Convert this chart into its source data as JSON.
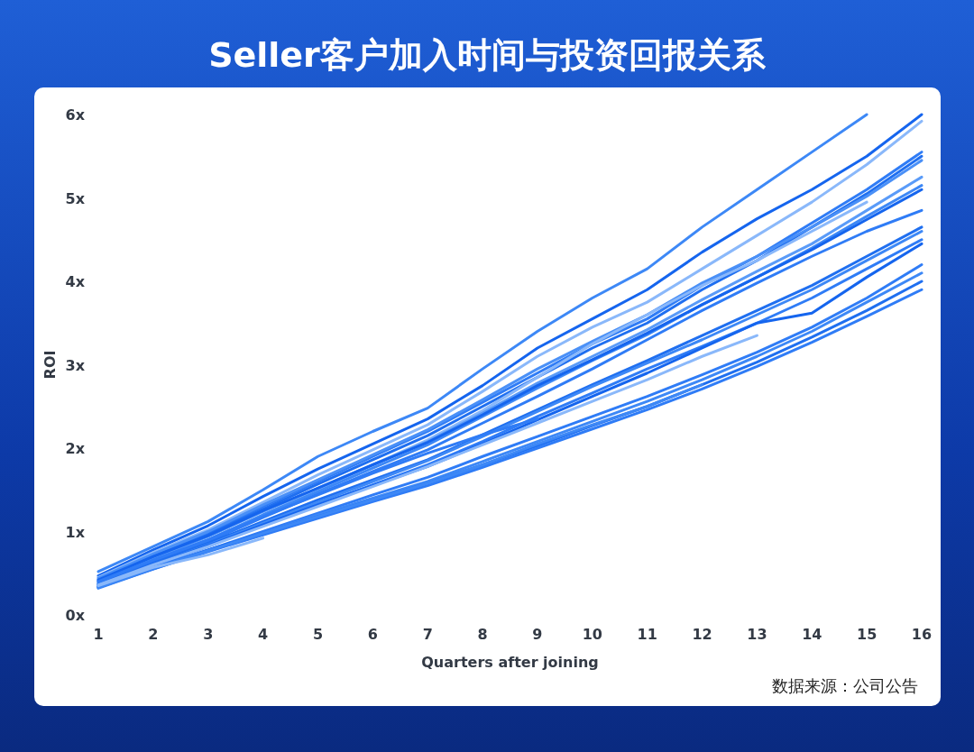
{
  "chart_data": {
    "type": "line",
    "title": "Seller客户加入时间与投资回报关系",
    "xlabel": "Quarters after joining",
    "ylabel": "ROI",
    "x": [
      1,
      2,
      3,
      4,
      5,
      6,
      7,
      8,
      9,
      10,
      11,
      12,
      13,
      14,
      15,
      16
    ],
    "xlim": [
      1,
      16
    ],
    "xticks": [
      1,
      2,
      3,
      4,
      5,
      6,
      7,
      8,
      9,
      10,
      11,
      12,
      13,
      14,
      15,
      16
    ],
    "ylim": [
      0,
      6
    ],
    "yticks": [
      {
        "value": 0,
        "label": "0x"
      },
      {
        "value": 1,
        "label": "1x"
      },
      {
        "value": 2,
        "label": "2x"
      },
      {
        "value": 3,
        "label": "3x"
      },
      {
        "value": 4,
        "label": "4x"
      },
      {
        "value": 5,
        "label": "5x"
      },
      {
        "value": 6,
        "label": "6x"
      }
    ],
    "grid": false,
    "series": [
      {
        "color": "#3d88f6",
        "values": [
          0.52,
          0.82,
          1.12,
          1.5,
          1.9,
          2.2,
          2.48,
          2.95,
          3.4,
          3.8,
          4.15,
          4.65,
          5.1,
          5.55,
          6.0,
          null
        ]
      },
      {
        "color": "#1565ee",
        "values": [
          0.47,
          0.78,
          1.07,
          1.42,
          1.75,
          2.05,
          2.35,
          2.75,
          3.2,
          3.55,
          3.9,
          4.35,
          4.75,
          5.1,
          5.5,
          6.0
        ]
      },
      {
        "color": "#8ab8fa",
        "values": [
          0.45,
          0.75,
          1.02,
          1.35,
          1.68,
          1.98,
          2.28,
          2.68,
          3.1,
          3.45,
          3.75,
          4.15,
          4.55,
          4.95,
          5.4,
          5.92
        ]
      },
      {
        "color": "#2f7cf6",
        "values": [
          0.42,
          0.72,
          0.98,
          1.3,
          1.6,
          1.9,
          2.2,
          2.55,
          2.9,
          3.25,
          3.55,
          3.95,
          4.3,
          4.7,
          5.1,
          5.55
        ]
      },
      {
        "color": "#1f6ff0",
        "values": [
          0.4,
          0.7,
          0.96,
          1.27,
          1.57,
          1.86,
          2.15,
          2.5,
          2.85,
          3.2,
          3.5,
          3.9,
          4.25,
          4.65,
          5.05,
          5.5
        ]
      },
      {
        "color": "#4a90f7",
        "values": [
          0.44,
          0.73,
          1.0,
          1.32,
          1.62,
          1.92,
          2.22,
          2.58,
          2.95,
          3.28,
          3.6,
          3.98,
          4.3,
          4.65,
          5.02,
          5.45
        ]
      },
      {
        "color": "#8ab8fa",
        "values": [
          0.38,
          0.66,
          0.9,
          1.2,
          1.5,
          1.8,
          2.1,
          2.45,
          2.85,
          3.25,
          3.6,
          3.95,
          4.25,
          4.6,
          4.95,
          null
        ]
      },
      {
        "color": "#5a9bf8",
        "values": [
          0.4,
          0.68,
          0.94,
          1.24,
          1.52,
          1.8,
          2.08,
          2.42,
          2.78,
          3.1,
          3.42,
          3.78,
          4.12,
          4.45,
          4.85,
          5.25
        ]
      },
      {
        "color": "#3d88f6",
        "values": [
          0.38,
          0.65,
          0.9,
          1.2,
          1.48,
          1.76,
          2.04,
          2.38,
          2.72,
          3.05,
          3.36,
          3.72,
          4.05,
          4.4,
          4.78,
          5.15
        ]
      },
      {
        "color": "#1565ee",
        "values": [
          0.42,
          0.7,
          0.95,
          1.25,
          1.52,
          1.8,
          2.07,
          2.4,
          2.75,
          3.06,
          3.38,
          3.72,
          4.05,
          4.38,
          4.74,
          5.1
        ]
      },
      {
        "color": "#2f7cf6",
        "values": [
          0.37,
          0.64,
          0.88,
          1.17,
          1.45,
          1.72,
          1.98,
          2.3,
          2.62,
          2.95,
          3.3,
          3.65,
          3.98,
          4.3,
          4.6,
          4.85
        ]
      },
      {
        "color": "#1f6ff0",
        "values": [
          0.36,
          0.62,
          0.86,
          1.12,
          1.38,
          1.62,
          1.86,
          2.16,
          2.46,
          2.76,
          3.05,
          3.35,
          3.65,
          3.95,
          4.3,
          4.65
        ]
      },
      {
        "color": "#3d88f6",
        "values": [
          0.35,
          0.6,
          0.84,
          1.1,
          1.35,
          1.6,
          1.85,
          2.14,
          2.44,
          2.74,
          3.02,
          3.3,
          3.6,
          3.9,
          4.25,
          4.6
        ]
      },
      {
        "color": "#2f7cf6",
        "values": [
          0.34,
          0.58,
          0.82,
          1.08,
          1.32,
          1.56,
          1.8,
          2.08,
          2.38,
          2.66,
          2.95,
          3.22,
          3.5,
          3.8,
          4.15,
          4.5
        ]
      },
      {
        "color": "#1565ee",
        "values": [
          0.36,
          0.6,
          0.83,
          1.08,
          1.32,
          1.55,
          1.78,
          2.05,
          2.34,
          2.62,
          2.9,
          3.2,
          3.5,
          3.62,
          4.05,
          4.45
        ]
      },
      {
        "color": "#2f7cf6",
        "values": [
          0.33,
          0.56,
          0.78,
          1.0,
          1.22,
          1.44,
          1.65,
          1.9,
          2.14,
          2.38,
          2.62,
          2.88,
          3.15,
          3.45,
          3.8,
          4.2
        ]
      },
      {
        "color": "#3d88f6",
        "values": [
          0.32,
          0.55,
          0.77,
          0.98,
          1.2,
          1.4,
          1.6,
          1.84,
          2.08,
          2.32,
          2.56,
          2.82,
          3.1,
          3.4,
          3.75,
          4.1
        ]
      },
      {
        "color": "#1f6ff0",
        "values": [
          0.34,
          0.56,
          0.78,
          0.98,
          1.18,
          1.38,
          1.58,
          1.8,
          2.03,
          2.27,
          2.5,
          2.76,
          3.03,
          3.33,
          3.65,
          4.0
        ]
      },
      {
        "color": "#2f7cf6",
        "values": [
          0.33,
          0.55,
          0.76,
          0.96,
          1.16,
          1.36,
          1.55,
          1.77,
          2.0,
          2.23,
          2.46,
          2.71,
          2.98,
          3.27,
          3.58,
          3.9
        ]
      },
      {
        "color": "#8ab8fa",
        "values": [
          0.36,
          0.6,
          0.82,
          1.06,
          1.3,
          1.54,
          1.78,
          2.04,
          2.3,
          2.56,
          2.82,
          3.1,
          3.35,
          null,
          null,
          null
        ]
      },
      {
        "color": "#3d88f6",
        "values": [
          0.33,
          0.56,
          0.77,
          0.98,
          1.18,
          1.38,
          1.58,
          1.8,
          2.05,
          2.28,
          2.5,
          2.76,
          null,
          null,
          null,
          null
        ]
      },
      {
        "color": "#2f7cf6",
        "values": [
          0.4,
          0.66,
          0.9,
          1.18,
          1.44,
          1.7,
          1.94,
          2.16,
          2.35,
          null,
          null,
          null,
          null,
          null,
          null,
          null
        ]
      },
      {
        "color": "#8ab8fa",
        "values": [
          0.35,
          0.57,
          0.72,
          0.92,
          null,
          null,
          null,
          null,
          null,
          null,
          null,
          null,
          null,
          null,
          null,
          null
        ]
      }
    ],
    "annotations": [
      "数据来源：公司公告"
    ]
  }
}
